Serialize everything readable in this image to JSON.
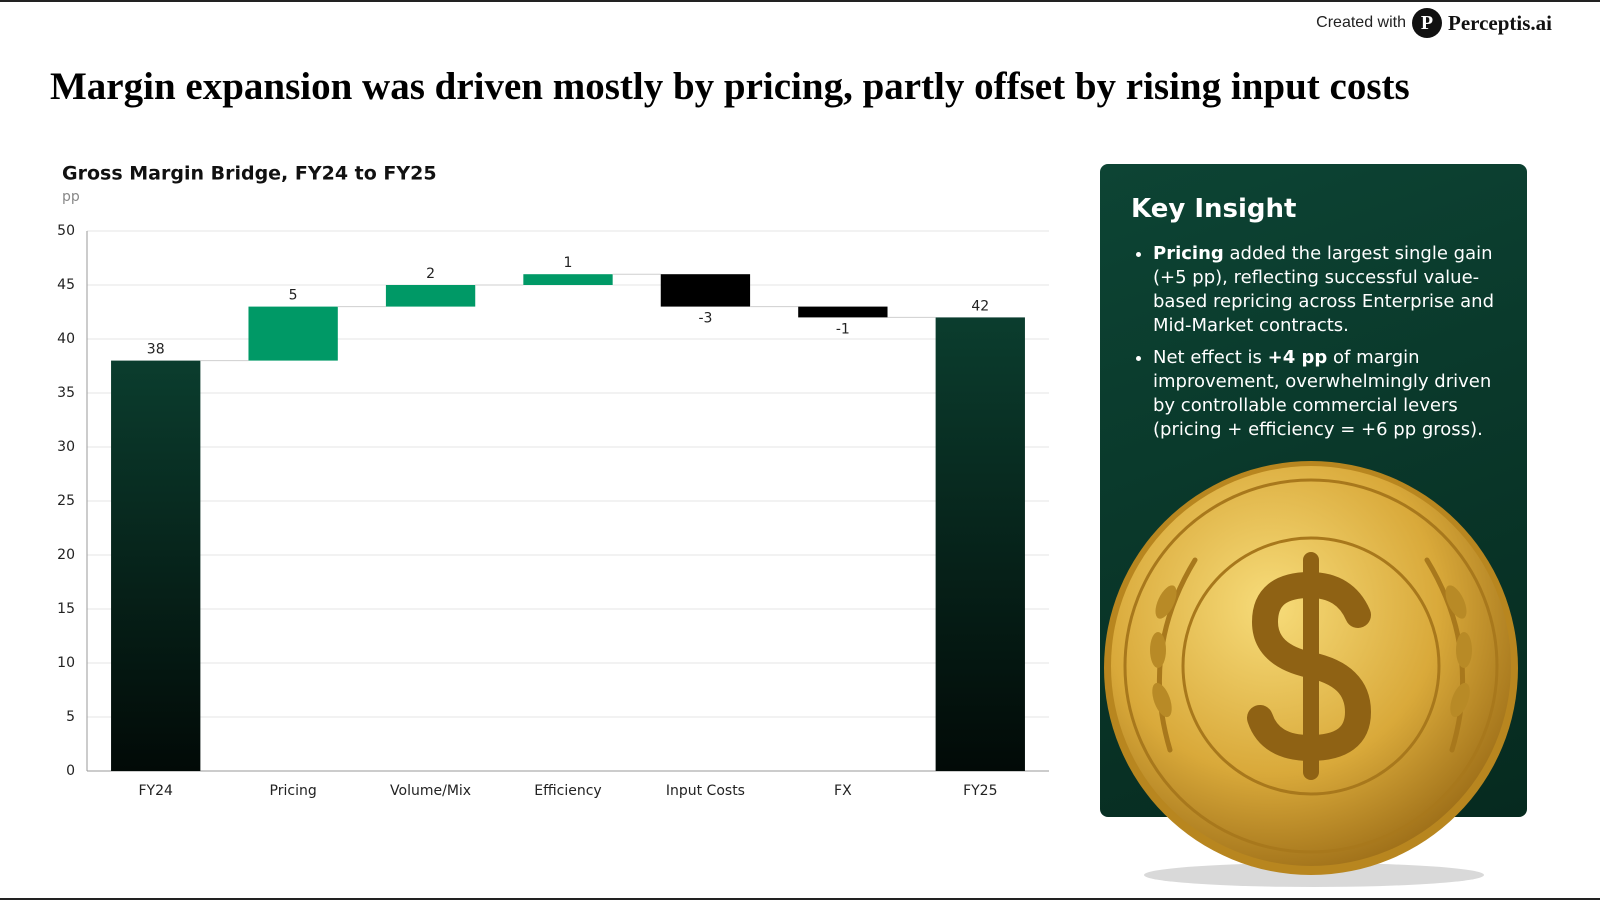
{
  "header": {
    "created_with": "Created with",
    "logo_letter": "P",
    "brand": "Perceptis.ai",
    "title": "Margin expansion was driven mostly by pricing, partly offset by rising input costs"
  },
  "chart_data": {
    "type": "waterfall",
    "title": "Gross Margin Bridge, FY24 to FY25",
    "unit": "pp",
    "categories": [
      "FY24",
      "Pricing",
      "Volume/Mix",
      "Efficiency",
      "Input Costs",
      "FX",
      "FY25"
    ],
    "values": [
      38,
      5,
      2,
      1,
      -3,
      -1,
      42
    ],
    "measure": [
      "absolute",
      "relative",
      "relative",
      "relative",
      "relative",
      "relative",
      "total"
    ],
    "increase_color": "#009966",
    "decrease_color": "#000000",
    "total_color": "#0b3d2e",
    "ylim": [
      0,
      50
    ],
    "yticks": [
      0,
      5,
      10,
      15,
      20,
      25,
      30,
      35,
      40,
      45,
      50
    ],
    "grid": true
  },
  "insight": {
    "heading": "Key Insight",
    "bullets": [
      [
        {
          "text": "Pricing",
          "bold": true
        },
        {
          "text": " added the largest single gain (+5 pp), reflecting successful value-based repricing across Enterprise and Mid-Market contracts.",
          "bold": false
        }
      ],
      [
        {
          "text": "Net effect is ",
          "bold": false
        },
        {
          "text": "+4 pp",
          "bold": true
        },
        {
          "text": " of margin improvement, overwhelmingly driven by controllable commercial levers (pricing + efficiency = +6 pp gross).",
          "bold": false
        }
      ]
    ]
  }
}
